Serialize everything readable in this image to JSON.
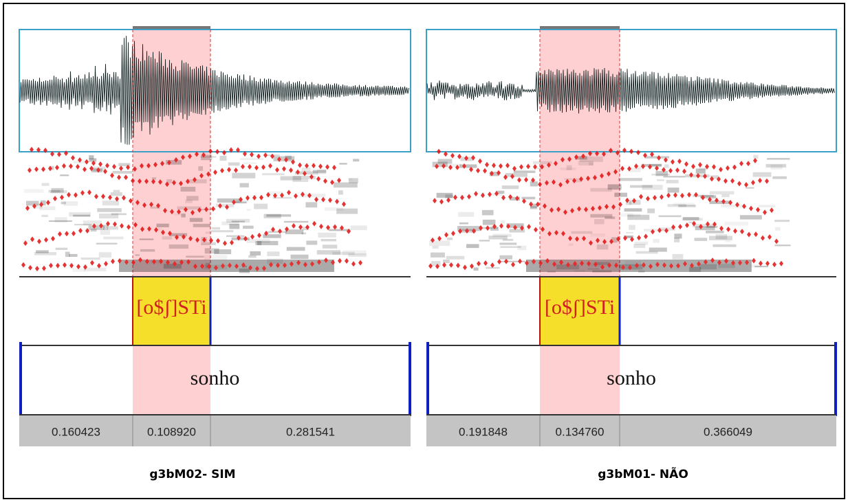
{
  "panels": [
    {
      "segment": "[o$ʃ]STi",
      "word": "sonho",
      "durations": [
        "0.160423",
        "0.108920",
        "0.281541"
      ],
      "caption": "g3bM02- SIM"
    },
    {
      "segment": "[o$ʃ]STi",
      "word": "sonho",
      "durations": [
        "0.191848",
        "0.134760",
        "0.366049"
      ],
      "caption": "g3bM01- NÃO"
    }
  ]
}
